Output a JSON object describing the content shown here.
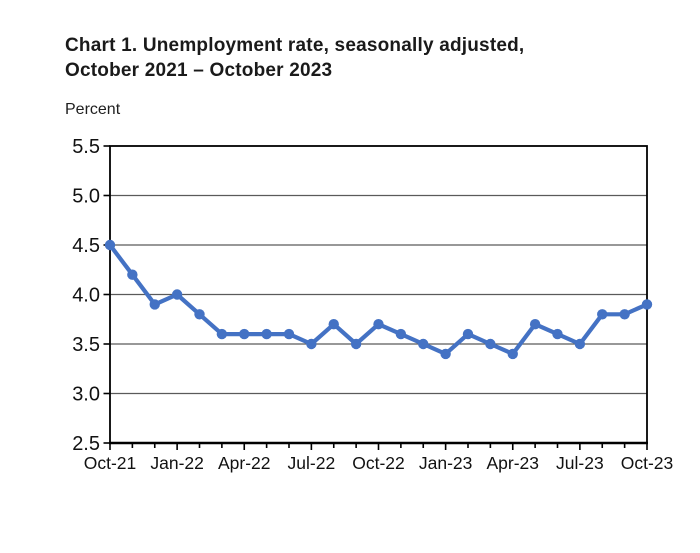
{
  "page": {
    "background": "#ffffff"
  },
  "title": {
    "line1": "Chart 1. Unemployment rate, seasonally adjusted,",
    "line2": "October 2021 – October 2023"
  },
  "axis_unit_label": "Percent",
  "chart_data": {
    "type": "line",
    "title": "Chart 1. Unemployment rate, seasonally adjusted, October 2021 – October 2023",
    "ylabel": "Percent",
    "xlabel": "",
    "categories": [
      "Oct-21",
      "Nov-21",
      "Dec-21",
      "Jan-22",
      "Feb-22",
      "Mar-22",
      "Apr-22",
      "May-22",
      "Jun-22",
      "Jul-22",
      "Aug-22",
      "Sep-22",
      "Oct-22",
      "Nov-22",
      "Dec-22",
      "Jan-23",
      "Feb-23",
      "Mar-23",
      "Apr-23",
      "May-23",
      "Jun-23",
      "Jul-23",
      "Aug-23",
      "Sep-23",
      "Oct-23"
    ],
    "values": [
      4.5,
      4.2,
      3.9,
      4.0,
      3.8,
      3.6,
      3.6,
      3.6,
      3.6,
      3.5,
      3.7,
      3.5,
      3.7,
      3.6,
      3.5,
      3.4,
      3.6,
      3.5,
      3.4,
      3.7,
      3.6,
      3.5,
      3.8,
      3.8,
      3.9
    ],
    "ylim": [
      2.5,
      5.5
    ],
    "ytick_labels": [
      "2.5",
      "3.0",
      "3.5",
      "4.0",
      "4.5",
      "5.0",
      "5.5"
    ],
    "x_axis_labels": [
      "Oct-21",
      "Jan-22",
      "Apr-22",
      "Jul-22",
      "Oct-22",
      "Jan-23",
      "Apr-23",
      "Jul-23",
      "Oct-23"
    ],
    "x_axis_label_indices": [
      0,
      3,
      6,
      9,
      12,
      15,
      18,
      21,
      24
    ],
    "grid": true,
    "legend": "none",
    "line_color": "#4472C4",
    "marker": "circle",
    "gridline_color": "#5a5a5a",
    "border_color": "#000000"
  }
}
